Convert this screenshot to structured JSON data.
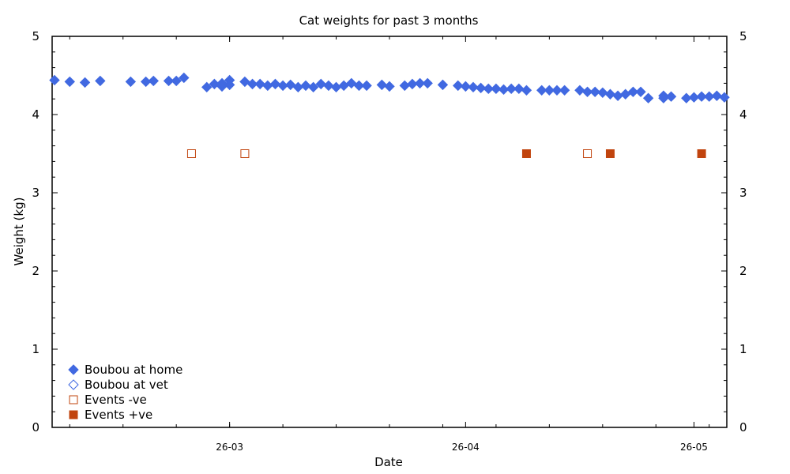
{
  "chart_data": {
    "type": "scatter",
    "title": "Cat weights for past 3 months",
    "xlabel": "Date",
    "ylabel": "Weight (kg)",
    "ylim": [
      0,
      5
    ],
    "yticks": [
      0,
      1,
      2,
      3,
      4,
      5
    ],
    "xlim": [
      "2026-02-06",
      "2026-05-05"
    ],
    "xticks": [
      {
        "date": "2026-03-01",
        "label": "26-03"
      },
      {
        "date": "2026-04-01",
        "label": "26-04"
      },
      {
        "date": "2026-05-01",
        "label": "26-05"
      }
    ],
    "grid": false,
    "legend_position": "bottom-left",
    "series": [
      {
        "name": "Boubou at home",
        "marker": "diamond-filled",
        "color": "#4169e1",
        "points": [
          [
            "2026-02-06",
            4.44
          ],
          [
            "2026-02-08",
            4.42
          ],
          [
            "2026-02-10",
            4.41
          ],
          [
            "2026-02-12",
            4.43
          ],
          [
            "2026-02-16",
            4.42
          ],
          [
            "2026-02-18",
            4.42
          ],
          [
            "2026-02-19",
            4.43
          ],
          [
            "2026-02-21",
            4.43
          ],
          [
            "2026-02-22",
            4.43
          ],
          [
            "2026-02-23",
            4.47
          ],
          [
            "2026-02-26",
            4.35
          ],
          [
            "2026-02-27",
            4.39
          ],
          [
            "2026-02-28",
            4.36
          ],
          [
            "2026-02-28",
            4.4
          ],
          [
            "2026-02-29",
            4.38
          ],
          [
            "2026-03-01",
            4.44
          ],
          [
            "2026-03-03",
            4.42
          ],
          [
            "2026-03-04",
            4.39
          ],
          [
            "2026-03-05",
            4.39
          ],
          [
            "2026-03-06",
            4.37
          ],
          [
            "2026-03-07",
            4.39
          ],
          [
            "2026-03-08",
            4.37
          ],
          [
            "2026-03-09",
            4.38
          ],
          [
            "2026-03-10",
            4.35
          ],
          [
            "2026-03-11",
            4.37
          ],
          [
            "2026-03-12",
            4.35
          ],
          [
            "2026-03-13",
            4.39
          ],
          [
            "2026-03-14",
            4.37
          ],
          [
            "2026-03-15",
            4.35
          ],
          [
            "2026-03-16",
            4.37
          ],
          [
            "2026-03-17",
            4.4
          ],
          [
            "2026-03-18",
            4.37
          ],
          [
            "2026-03-19",
            4.37
          ],
          [
            "2026-03-21",
            4.38
          ],
          [
            "2026-03-22",
            4.36
          ],
          [
            "2026-03-24",
            4.37
          ],
          [
            "2026-03-25",
            4.39
          ],
          [
            "2026-03-26",
            4.4
          ],
          [
            "2026-03-27",
            4.4
          ],
          [
            "2026-03-29",
            4.38
          ],
          [
            "2026-03-31",
            4.37
          ],
          [
            "2026-04-01",
            4.36
          ],
          [
            "2026-04-02",
            4.35
          ],
          [
            "2026-04-03",
            4.34
          ],
          [
            "2026-04-04",
            4.33
          ],
          [
            "2026-04-05",
            4.33
          ],
          [
            "2026-04-06",
            4.32
          ],
          [
            "2026-04-07",
            4.33
          ],
          [
            "2026-04-08",
            4.33
          ],
          [
            "2026-04-09",
            4.31
          ],
          [
            "2026-04-11",
            4.31
          ],
          [
            "2026-04-12",
            4.31
          ],
          [
            "2026-04-13",
            4.31
          ],
          [
            "2026-04-14",
            4.31
          ],
          [
            "2026-04-16",
            4.31
          ],
          [
            "2026-04-17",
            4.29
          ],
          [
            "2026-04-18",
            4.29
          ],
          [
            "2026-04-19",
            4.28
          ],
          [
            "2026-04-20",
            4.26
          ],
          [
            "2026-04-21",
            4.24
          ],
          [
            "2026-04-22",
            4.26
          ],
          [
            "2026-04-23",
            4.29
          ],
          [
            "2026-04-24",
            4.29
          ],
          [
            "2026-04-25",
            4.21
          ],
          [
            "2026-04-27",
            4.24
          ],
          [
            "2026-04-27",
            4.21
          ],
          [
            "2026-04-28",
            4.23
          ],
          [
            "2026-04-30",
            4.21
          ],
          [
            "2026-05-01",
            4.22
          ],
          [
            "2026-05-02",
            4.23
          ],
          [
            "2026-05-03",
            4.23
          ],
          [
            "2026-05-04",
            4.24
          ],
          [
            "2026-05-05",
            4.22
          ]
        ]
      },
      {
        "name": "Boubou at vet",
        "marker": "diamond-open",
        "color": "#4169e1",
        "points": []
      },
      {
        "name": "Events -ve",
        "marker": "square-open",
        "color": "#c1440e",
        "points": [
          [
            "2026-02-24",
            3.5
          ],
          [
            "2026-03-03",
            3.5
          ],
          [
            "2026-04-17",
            3.5
          ]
        ]
      },
      {
        "name": "Events +ve",
        "marker": "square-filled",
        "color": "#c1440e",
        "points": [
          [
            "2026-04-09",
            3.5
          ],
          [
            "2026-04-20",
            3.5
          ],
          [
            "2026-05-02",
            3.5
          ]
        ]
      }
    ]
  }
}
